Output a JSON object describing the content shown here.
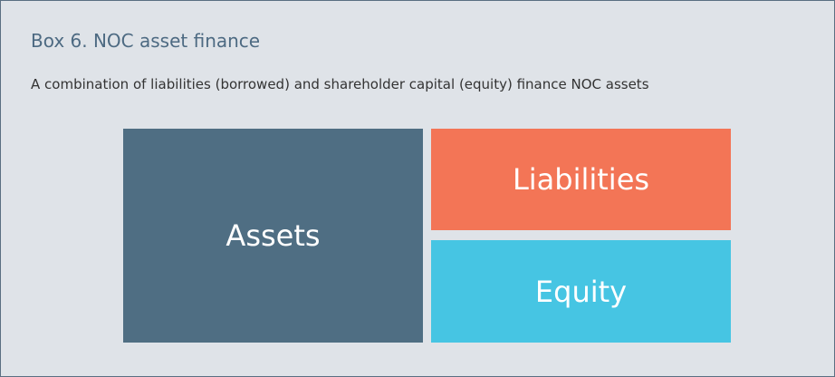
{
  "header": {
    "title": "Box 6. NOC asset finance",
    "subtitle": "A combination of liabilities (borrowed) and shareholder capital (equity) finance NOC assets"
  },
  "nodes": [
    {
      "label": "Assets"
    },
    {
      "label": "Liabilities"
    },
    {
      "label": "Equity"
    }
  ]
}
